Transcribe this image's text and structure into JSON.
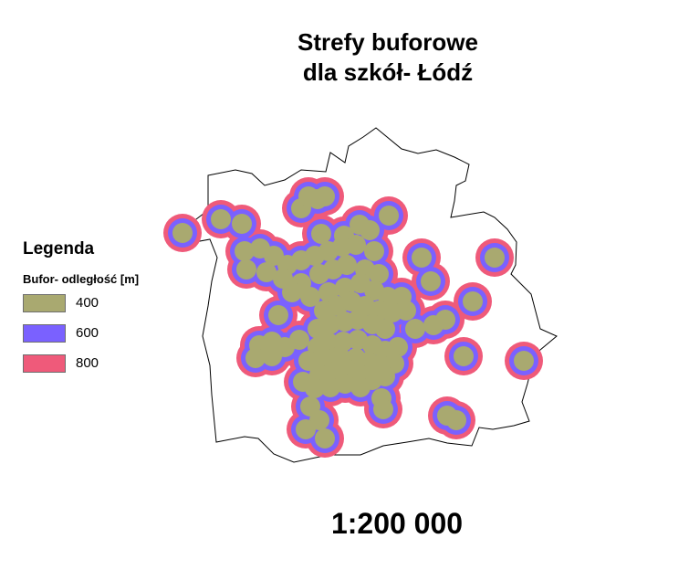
{
  "title_line1": "Strefy buforowe",
  "title_line2": "dla szkół- Łódź",
  "legend": {
    "title": "Legenda",
    "subtitle": "Bufor- odległość [m]",
    "items": [
      {
        "label": "400",
        "color": "#a9a970"
      },
      {
        "label": "600",
        "color": "#7a61ff"
      },
      {
        "label": "800",
        "color": "#ef5a7a"
      }
    ]
  },
  "scale": "1:200 000",
  "colors": {
    "boundary": "#000000",
    "land": "#ffffff"
  }
}
